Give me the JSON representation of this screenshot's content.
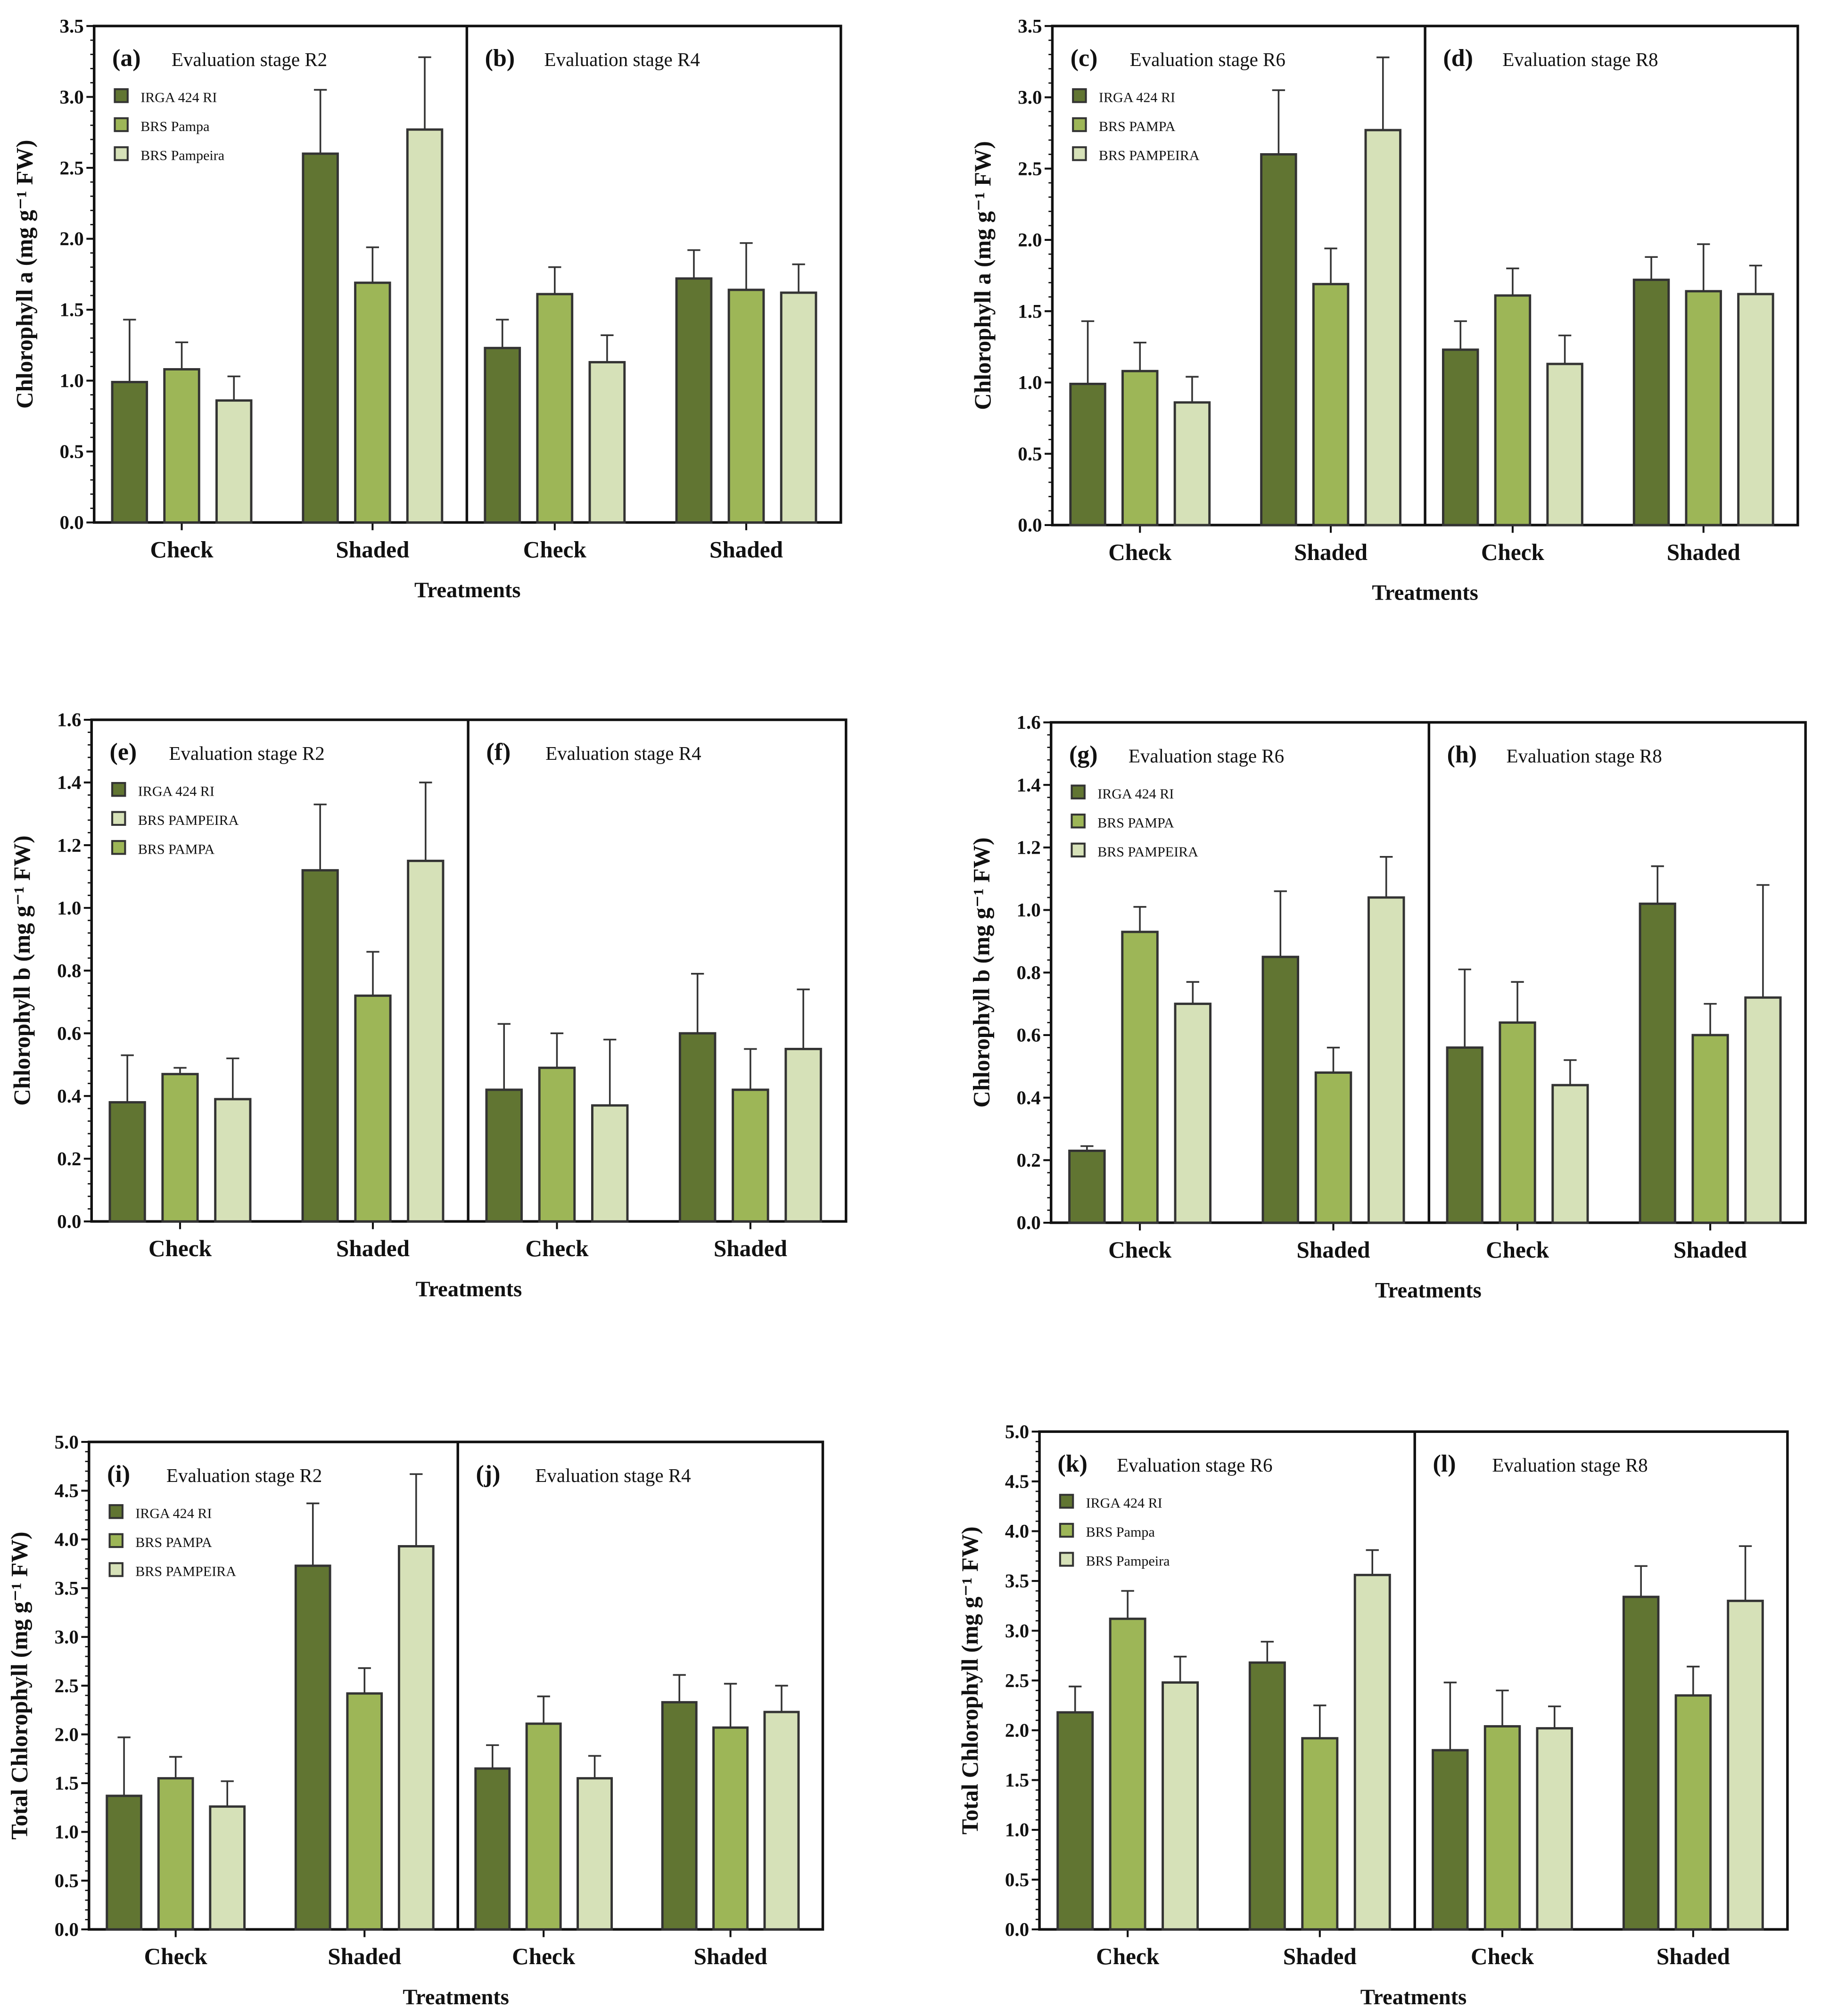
{
  "colors": {
    "dark": "#617532",
    "mid": "#9db657",
    "light": "#d6e1b8",
    "edge": "#333333"
  },
  "chart_data": [
    {
      "type": "bar",
      "figure": "top-left",
      "ylabel": "Chlorophyll a (mg g⁻¹ FW)",
      "xlabel": "Treatments",
      "ylim": [
        0,
        3.5
      ],
      "ymajor": 0.5,
      "yticks": [
        "0.0",
        "0.5",
        "1.0",
        "1.5",
        "2.0",
        "2.5",
        "3.0",
        "3.5"
      ],
      "legend": [
        {
          "name": "IRGA 424 RI",
          "color": "dark"
        },
        {
          "name": "BRS Pampa",
          "color": "mid"
        },
        {
          "name": "BRS Pampeira",
          "color": "light"
        }
      ],
      "panels": [
        {
          "label": "(a)",
          "title": "Evaluation stage R2",
          "categories": [
            "Check",
            "Shaded"
          ],
          "series": [
            {
              "name": "IRGA 424 RI",
              "color": "dark",
              "values": [
                0.99,
                2.6
              ],
              "upper": [
                1.43,
                3.05
              ]
            },
            {
              "name": "BRS Pampa",
              "color": "mid",
              "values": [
                1.08,
                1.69
              ],
              "upper": [
                1.27,
                1.94
              ]
            },
            {
              "name": "BRS Pampeira",
              "color": "light",
              "values": [
                0.86,
                2.77
              ],
              "upper": [
                1.03,
                3.28
              ]
            }
          ]
        },
        {
          "label": "(b)",
          "title": "Evaluation stage R4",
          "categories": [
            "Check",
            "Shaded"
          ],
          "series": [
            {
              "name": "IRGA 424 RI",
              "color": "dark",
              "values": [
                1.23,
                1.72
              ],
              "upper": [
                1.43,
                1.92
              ]
            },
            {
              "name": "BRS Pampa",
              "color": "mid",
              "values": [
                1.61,
                1.64
              ],
              "upper": [
                1.8,
                1.97
              ]
            },
            {
              "name": "BRS Pampeira",
              "color": "light",
              "values": [
                1.13,
                1.62
              ],
              "upper": [
                1.32,
                1.82
              ]
            }
          ]
        }
      ]
    },
    {
      "type": "bar",
      "figure": "top-right",
      "ylabel": "Chlorophyll a (mg g⁻¹ FW)",
      "xlabel": "Treatments",
      "ylim": [
        0,
        3.5
      ],
      "ymajor": 0.5,
      "yticks": [
        "0.0",
        "0.5",
        "1.0",
        "1.5",
        "2.0",
        "2.5",
        "3.0",
        "3.5"
      ],
      "legend": [
        {
          "name": "IRGA 424 RI",
          "color": "dark"
        },
        {
          "name": "BRS PAMPA",
          "color": "mid"
        },
        {
          "name": "BRS PAMPEIRA",
          "color": "light"
        }
      ],
      "panels": [
        {
          "label": "(c)",
          "title": "Evaluation stage R6",
          "categories": [
            "Check",
            "Shaded"
          ],
          "series": [
            {
              "name": "IRGA 424 RI",
              "color": "dark",
              "values": [
                0.99,
                2.6
              ],
              "upper": [
                1.43,
                3.05
              ]
            },
            {
              "name": "BRS PAMPA",
              "color": "mid",
              "values": [
                1.08,
                1.69
              ],
              "upper": [
                1.28,
                1.94
              ]
            },
            {
              "name": "BRS PAMPEIRA",
              "color": "light",
              "values": [
                0.86,
                2.77
              ],
              "upper": [
                1.04,
                3.28
              ]
            }
          ]
        },
        {
          "label": "(d)",
          "title": "Evaluation stage R8",
          "categories": [
            "Check",
            "Shaded"
          ],
          "series": [
            {
              "name": "IRGA 424 RI",
              "color": "dark",
              "values": [
                1.23,
                1.72
              ],
              "upper": [
                1.43,
                1.88
              ]
            },
            {
              "name": "BRS PAMPA",
              "color": "mid",
              "values": [
                1.61,
                1.64
              ],
              "upper": [
                1.8,
                1.97
              ]
            },
            {
              "name": "BRS PAMPEIRA",
              "color": "light",
              "values": [
                1.13,
                1.62
              ],
              "upper": [
                1.33,
                1.82
              ]
            }
          ]
        }
      ]
    },
    {
      "type": "bar",
      "figure": "middle-left",
      "ylabel": "Chlorophyll b (mg g⁻¹ FW)",
      "xlabel": "Treatments",
      "ylim": [
        0,
        1.6
      ],
      "ymajor": 0.2,
      "yticks": [
        "0.0",
        "0.2",
        "0.4",
        "0.6",
        "0.8",
        "1.0",
        "1.2",
        "1.4",
        "1.6"
      ],
      "legend": [
        {
          "name": "IRGA 424 RI",
          "color": "dark"
        },
        {
          "name": "BRS PAMPEIRA",
          "color": "light"
        },
        {
          "name": "BRS PAMPA",
          "color": "mid"
        }
      ],
      "panels": [
        {
          "label": "(e)",
          "title": "Evaluation stage R2",
          "categories": [
            "Check",
            "Shaded"
          ],
          "series": [
            {
              "name": "IRGA 424 RI",
              "color": "dark",
              "values": [
                0.38,
                1.12
              ],
              "upper": [
                0.53,
                1.33
              ]
            },
            {
              "name": "BRS PAMPA",
              "color": "mid",
              "values": [
                0.47,
                0.72
              ],
              "upper": [
                0.49,
                0.86
              ]
            },
            {
              "name": "BRS PAMPEIRA",
              "color": "light",
              "values": [
                0.39,
                1.15
              ],
              "upper": [
                0.52,
                1.4
              ]
            }
          ]
        },
        {
          "label": "(f)",
          "title": "Evaluation stage R4",
          "categories": [
            "Check",
            "Shaded"
          ],
          "series": [
            {
              "name": "IRGA 424 RI",
              "color": "dark",
              "values": [
                0.42,
                0.6
              ],
              "upper": [
                0.63,
                0.79
              ]
            },
            {
              "name": "BRS PAMPA",
              "color": "mid",
              "values": [
                0.49,
                0.42
              ],
              "upper": [
                0.6,
                0.55
              ]
            },
            {
              "name": "BRS PAMPEIRA",
              "color": "light",
              "values": [
                0.37,
                0.55
              ],
              "upper": [
                0.58,
                0.74
              ]
            }
          ]
        }
      ]
    },
    {
      "type": "bar",
      "figure": "middle-right",
      "ylabel": "Chlorophyll b (mg g⁻¹ FW)",
      "xlabel": "Treatments",
      "ylim": [
        0,
        1.6
      ],
      "ymajor": 0.2,
      "yticks": [
        "0.0",
        "0.2",
        "0.4",
        "0.6",
        "0.8",
        "1.0",
        "1.2",
        "1.4",
        "1.6"
      ],
      "legend": [
        {
          "name": "IRGA 424 RI",
          "color": "dark"
        },
        {
          "name": "BRS PAMPA",
          "color": "mid"
        },
        {
          "name": "BRS PAMPEIRA",
          "color": "light"
        }
      ],
      "panels": [
        {
          "label": "(g)",
          "title": "Evaluation stage R6",
          "categories": [
            "Check",
            "Shaded"
          ],
          "series": [
            {
              "name": "IRGA 424 RI",
              "color": "dark",
              "values": [
                0.23,
                0.85
              ],
              "upper": [
                0.245,
                1.06
              ]
            },
            {
              "name": "BRS PAMPA",
              "color": "mid",
              "values": [
                0.93,
                0.48
              ],
              "upper": [
                1.01,
                0.56
              ]
            },
            {
              "name": "BRS PAMPEIRA",
              "color": "light",
              "values": [
                0.7,
                1.04
              ],
              "upper": [
                0.77,
                1.17
              ]
            }
          ]
        },
        {
          "label": "(h)",
          "title": "Evaluation stage R8",
          "categories": [
            "Check",
            "Shaded"
          ],
          "series": [
            {
              "name": "IRGA 424 RI",
              "color": "dark",
              "values": [
                0.56,
                1.02
              ],
              "upper": [
                0.81,
                1.14
              ]
            },
            {
              "name": "BRS PAMPA",
              "color": "mid",
              "values": [
                0.64,
                0.6
              ],
              "upper": [
                0.77,
                0.7
              ]
            },
            {
              "name": "BRS PAMPEIRA",
              "color": "light",
              "values": [
                0.44,
                0.72
              ],
              "upper": [
                0.52,
                1.08
              ]
            }
          ]
        }
      ]
    },
    {
      "type": "bar",
      "figure": "bottom-left",
      "ylabel": "Total Chlorophyll (mg g⁻¹ FW)",
      "xlabel": "Treatments",
      "ylim": [
        0,
        5.0
      ],
      "ymajor": 0.5,
      "yticks": [
        "0.0",
        "0.5",
        "1.0",
        "1.5",
        "2.0",
        "2.5",
        "3.0",
        "3.5",
        "4.0",
        "4.5",
        "5.0"
      ],
      "legend": [
        {
          "name": "IRGA 424 RI",
          "color": "dark"
        },
        {
          "name": "BRS PAMPA",
          "color": "mid"
        },
        {
          "name": "BRS PAMPEIRA",
          "color": "light"
        }
      ],
      "panels": [
        {
          "label": "(i)",
          "title": "Evaluation stage R2",
          "categories": [
            "Check",
            "Shaded"
          ],
          "series": [
            {
              "name": "IRGA 424 RI",
              "color": "dark",
              "values": [
                1.37,
                3.73
              ],
              "upper": [
                1.97,
                4.37
              ]
            },
            {
              "name": "BRS PAMPA",
              "color": "mid",
              "values": [
                1.55,
                2.42
              ],
              "upper": [
                1.77,
                2.68
              ]
            },
            {
              "name": "BRS PAMPEIRA",
              "color": "light",
              "values": [
                1.26,
                3.93
              ],
              "upper": [
                1.52,
                4.67
              ]
            }
          ]
        },
        {
          "label": "(j)",
          "title": "Evaluation stage R4",
          "categories": [
            "Check",
            "Shaded"
          ],
          "series": [
            {
              "name": "IRGA 424 RI",
              "color": "dark",
              "values": [
                1.65,
                2.33
              ],
              "upper": [
                1.89,
                2.61
              ]
            },
            {
              "name": "BRS PAMPA",
              "color": "mid",
              "values": [
                2.11,
                2.07
              ],
              "upper": [
                2.39,
                2.52
              ]
            },
            {
              "name": "BRS PAMPEIRA",
              "color": "light",
              "values": [
                1.55,
                2.23
              ],
              "upper": [
                1.78,
                2.5
              ]
            }
          ]
        }
      ]
    },
    {
      "type": "bar",
      "figure": "bottom-right",
      "ylabel": "Total Chlorophyll (mg g⁻¹ FW)",
      "xlabel": "Treatments",
      "ylim": [
        0,
        5.0
      ],
      "ymajor": 0.5,
      "yticks": [
        "0.0",
        "0.5",
        "1.0",
        "1.5",
        "2.0",
        "2.5",
        "3.0",
        "3.5",
        "4.0",
        "4.5",
        "5.0"
      ],
      "legend": [
        {
          "name": "IRGA 424 RI",
          "color": "dark"
        },
        {
          "name": "BRS Pampa",
          "color": "mid"
        },
        {
          "name": "BRS Pampeira",
          "color": "light"
        }
      ],
      "panels": [
        {
          "label": "(k)",
          "title": "Evaluation stage R6",
          "categories": [
            "Check",
            "Shaded"
          ],
          "series": [
            {
              "name": "IRGA 424 RI",
              "color": "dark",
              "values": [
                2.18,
                2.68
              ],
              "upper": [
                2.44,
                2.89
              ]
            },
            {
              "name": "BRS Pampa",
              "color": "mid",
              "values": [
                3.12,
                1.92
              ],
              "upper": [
                3.4,
                2.25
              ]
            },
            {
              "name": "BRS Pampeira",
              "color": "light",
              "values": [
                2.48,
                3.56
              ],
              "upper": [
                2.74,
                3.81
              ]
            }
          ]
        },
        {
          "label": "(l)",
          "title": "Evaluation stage R8",
          "categories": [
            "Check",
            "Shaded"
          ],
          "series": [
            {
              "name": "IRGA 424 RI",
              "color": "dark",
              "values": [
                1.8,
                3.34
              ],
              "upper": [
                2.48,
                3.65
              ]
            },
            {
              "name": "BRS Pampa",
              "color": "mid",
              "values": [
                2.04,
                2.35
              ],
              "upper": [
                2.4,
                2.64
              ]
            },
            {
              "name": "BRS Pampeira",
              "color": "light",
              "values": [
                2.02,
                3.3
              ],
              "upper": [
                2.24,
                3.85
              ]
            }
          ]
        }
      ]
    }
  ]
}
